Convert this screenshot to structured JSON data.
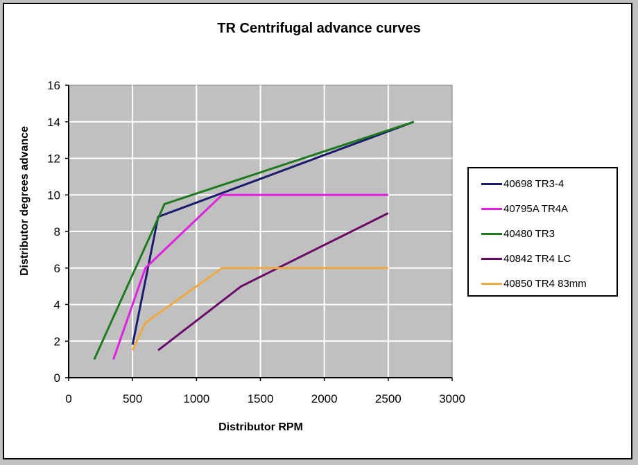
{
  "chart_data": {
    "type": "line",
    "title": "TR Centrifugal advance curves",
    "xlabel": "Distributor RPM",
    "ylabel": "Distributor degrees advance",
    "xlim": [
      0,
      3000
    ],
    "ylim": [
      0,
      16
    ],
    "xticks": [
      0,
      500,
      1000,
      1500,
      2000,
      2500,
      3000
    ],
    "yticks": [
      0,
      2,
      4,
      6,
      8,
      10,
      12,
      14,
      16
    ],
    "grid": true,
    "legend_position": "right",
    "series": [
      {
        "name": "40698 TR3-4",
        "color": "#1a1a6e",
        "points": [
          [
            500,
            1.8
          ],
          [
            700,
            8.8
          ],
          [
            2700,
            14
          ]
        ]
      },
      {
        "name": "40795A TR4A",
        "color": "#e020e0",
        "points": [
          [
            350,
            1
          ],
          [
            600,
            6
          ],
          [
            1200,
            10
          ],
          [
            2500,
            10
          ]
        ]
      },
      {
        "name": "40480 TR3",
        "color": "#1e7a1e",
        "points": [
          [
            200,
            1
          ],
          [
            750,
            9.5
          ],
          [
            2700,
            14
          ]
        ]
      },
      {
        "name": "40842 TR4 LC",
        "color": "#6a0a6a",
        "points": [
          [
            700,
            1.5
          ],
          [
            1350,
            5
          ],
          [
            2500,
            9
          ]
        ]
      },
      {
        "name": "40850 TR4 83mm",
        "color": "#f0a840",
        "points": [
          [
            500,
            1.5
          ],
          [
            600,
            3
          ],
          [
            1200,
            6
          ],
          [
            2500,
            6
          ]
        ]
      }
    ]
  },
  "legend": {
    "items": [
      {
        "label": "40698 TR3-4",
        "color": "#1a1a6e"
      },
      {
        "label": "40795A TR4A",
        "color": "#e020e0"
      },
      {
        "label": "40480 TR3",
        "color": "#1e7a1e"
      },
      {
        "label": "40842 TR4 LC",
        "color": "#6a0a6a"
      },
      {
        "label": "40850 TR4 83mm",
        "color": "#f0a840"
      }
    ]
  },
  "colors": {
    "plot_background": "#c0c0c0",
    "gridline": "#ffffff"
  }
}
